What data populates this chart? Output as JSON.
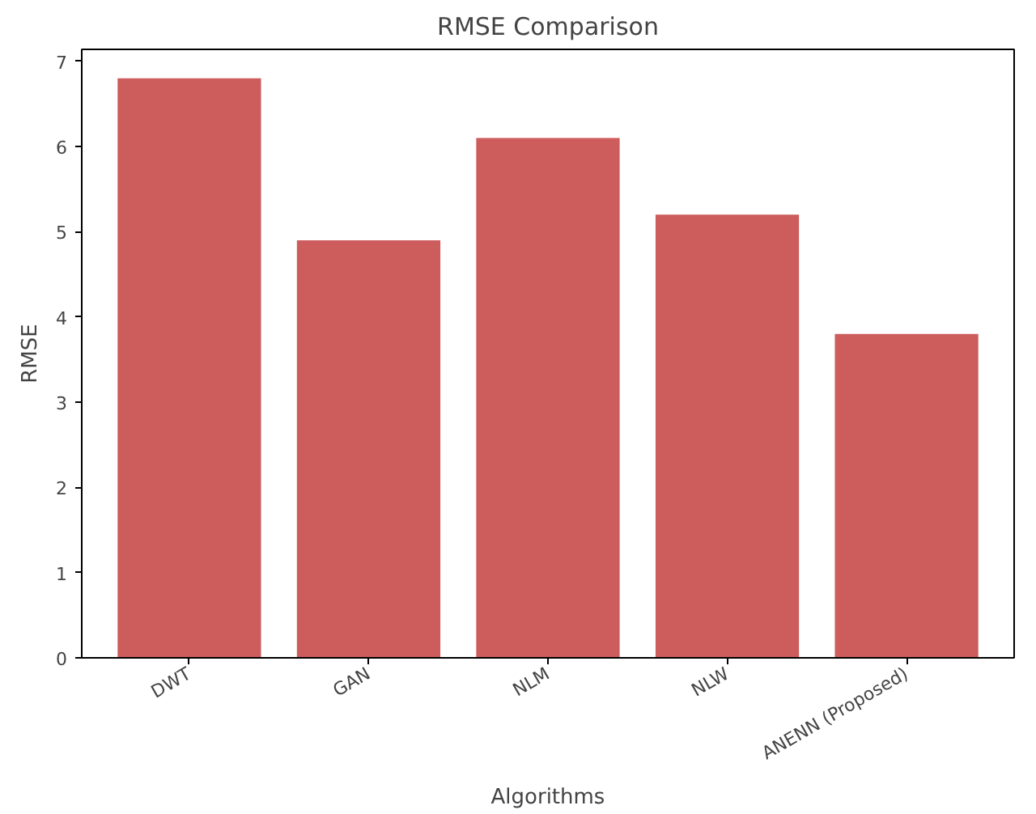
{
  "chart_data": {
    "type": "bar",
    "title": "RMSE Comparison",
    "xlabel": "Algorithms",
    "ylabel": "RMSE",
    "categories": [
      "DWT",
      "GAN",
      "NLM",
      "NLW",
      "ANENN (Proposed)"
    ],
    "values": [
      6.8,
      4.9,
      6.1,
      5.2,
      3.8
    ],
    "color": "#cd5c5c",
    "ylim": [
      0,
      7.14
    ],
    "yticks": [
      0,
      1,
      2,
      3,
      4,
      5,
      6,
      7
    ],
    "grid": false
  }
}
